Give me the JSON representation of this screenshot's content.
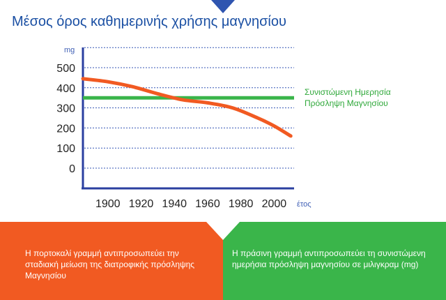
{
  "title": "Μέσος όρος καθημερινής χρήσης μαγνησίου",
  "colors": {
    "title": "#1a4fa3",
    "axis": "#2a3fa0",
    "grid": "#3456b5",
    "orange": "#f15a22",
    "green": "#3ab54a",
    "unit": "#3f5fb5"
  },
  "chart_data": {
    "type": "line",
    "title": "Μέσος όρος καθημερινής χρήσης μαγνησίου",
    "ylabel": "mg",
    "xlabel": "έτος",
    "y_ticks": [
      500,
      400,
      300,
      200,
      100,
      0
    ],
    "x_ticks": [
      1900,
      1920,
      1940,
      1960,
      1980,
      2000
    ],
    "ylim": [
      0,
      500
    ],
    "xlim": [
      1885,
      2012
    ],
    "grid": true,
    "series": [
      {
        "color": "#f15a22",
        "x": [
          1885,
          1900,
          1915,
          1930,
          1945,
          1960,
          1975,
          1990,
          2000,
          2010
        ],
        "y": [
          445,
          430,
          405,
          370,
          340,
          325,
          300,
          250,
          210,
          160
        ]
      },
      {
        "color": "#3ab54a",
        "x": [
          1885,
          2012
        ],
        "y": [
          350,
          350
        ]
      }
    ],
    "annotations": [
      "Συνιστώμενη Ημερησία",
      "Πρόσληψη Μαγνησίου"
    ]
  },
  "footer": {
    "orange_note": "Η πορτοκαλί γραμμή αντιπροσωπεύει την σταδιακή μείωση της διατροφικής πρόσληψης Μαγνησίου",
    "green_note": "Η πράσινη γραμμή αντιπροσωπεύει τη συνιστώμενη ημερήσια πρόσληψη μαγνησίου σε μιλιγκραμ (mg)"
  }
}
